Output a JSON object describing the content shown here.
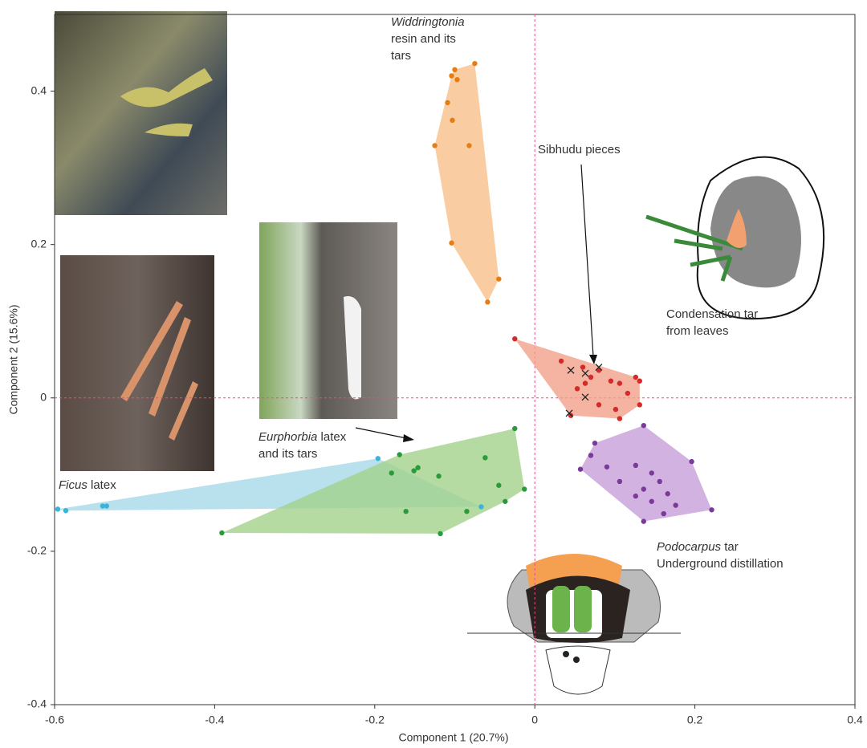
{
  "chart_data": {
    "type": "scatter",
    "x_label": "Component 1 (20.7%)",
    "y_label": "Component 2 (15.6%)",
    "xlim": [
      -0.6,
      0.4
    ],
    "ylim": [
      -0.4,
      0.5
    ],
    "xticks": [
      -0.6,
      -0.4,
      -0.2,
      0,
      0.2,
      0.4
    ],
    "yticks": [
      -0.4,
      -0.2,
      0,
      0.2,
      0.4
    ],
    "reference_lines": {
      "x": 0,
      "y": 0,
      "color": "#e0508a"
    },
    "series": [
      {
        "color": "#e57c14",
        "fill": "#f8c08a",
        "hull": true,
        "x": [
          -0.075,
          -0.1,
          -0.104,
          -0.097,
          -0.109,
          -0.103,
          -0.082,
          -0.125,
          -0.104,
          -0.045,
          -0.059
        ],
        "y": [
          0.436,
          0.428,
          0.42,
          0.415,
          0.385,
          0.362,
          0.329,
          0.329,
          0.202,
          0.155,
          0.125
        ]
      },
      {
        "color": "#d42a2a",
        "fill": "#f2a089",
        "hull": true,
        "x": [
          -0.025,
          0.033,
          0.06,
          0.08,
          0.07,
          0.063,
          0.053,
          0.095,
          0.106,
          0.126,
          0.131,
          0.116,
          0.101,
          0.08,
          0.045,
          0.131,
          0.106
        ],
        "y": [
          0.077,
          0.048,
          0.04,
          0.036,
          0.027,
          0.019,
          0.012,
          0.022,
          0.019,
          0.027,
          0.022,
          0.006,
          -0.015,
          -0.009,
          -0.023,
          -0.009,
          -0.027
        ]
      },
      {
        "color": "#222222",
        "marker": "x",
        "x": [
          0.045,
          0.063,
          0.08,
          0.063,
          0.043
        ],
        "y": [
          0.036,
          0.032,
          0.04,
          0.001,
          -0.02
        ]
      },
      {
        "color": "#7b3a9a",
        "fill": "#c79fd8",
        "hull": true,
        "x": [
          0.075,
          0.07,
          0.136,
          0.196,
          0.057,
          0.126,
          0.146,
          0.156,
          0.136,
          0.126,
          0.146,
          0.166,
          0.176,
          0.161,
          0.136,
          0.221,
          0.106,
          0.09
        ],
        "y": [
          -0.059,
          -0.075,
          -0.036,
          -0.083,
          -0.093,
          -0.088,
          -0.098,
          -0.109,
          -0.119,
          -0.128,
          -0.135,
          -0.125,
          -0.14,
          -0.151,
          -0.161,
          -0.146,
          -0.109,
          -0.09
        ]
      },
      {
        "color": "#3ab4d8",
        "fill": "#a8d8e8",
        "hull": true,
        "x": [
          -0.196,
          -0.067,
          -0.596,
          -0.586,
          -0.54,
          -0.535
        ],
        "y": [
          -0.079,
          -0.142,
          -0.145,
          -0.147,
          -0.141,
          -0.141
        ]
      },
      {
        "color": "#2a9a3a",
        "fill": "#a3d28c",
        "hull": true,
        "x": [
          -0.025,
          -0.062,
          -0.169,
          -0.146,
          -0.151,
          -0.12,
          -0.179,
          -0.045,
          -0.013,
          -0.037,
          -0.085,
          -0.161,
          -0.118,
          -0.391
        ],
        "y": [
          -0.04,
          -0.078,
          -0.074,
          -0.091,
          -0.095,
          -0.102,
          -0.098,
          -0.114,
          -0.119,
          -0.135,
          -0.148,
          -0.148,
          -0.177,
          -0.176
        ]
      }
    ],
    "annotations": [
      [
        [
          {
            "text": "Widdringtonia",
            "italic": true
          }
        ],
        [
          {
            "text": "resin and its"
          }
        ],
        [
          {
            "text": "tars"
          }
        ]
      ],
      [
        [
          {
            "text": "Sibhudu pieces"
          }
        ]
      ],
      [
        [
          {
            "text": "Condensation tar"
          }
        ],
        [
          {
            "text": "from leaves"
          }
        ]
      ],
      [
        [
          {
            "text": "Eurphorbia",
            "italic": true
          },
          {
            "text": " latex"
          }
        ],
        [
          {
            "text": "and its tars"
          }
        ]
      ],
      [
        [
          {
            "text": "Ficus",
            "italic": true
          },
          {
            "text": " latex"
          }
        ]
      ],
      [
        [
          {
            "text": "Podocarpus",
            "italic": true
          },
          {
            "text": " tar"
          }
        ],
        [
          {
            "text": "Underground distillation"
          }
        ]
      ]
    ]
  }
}
